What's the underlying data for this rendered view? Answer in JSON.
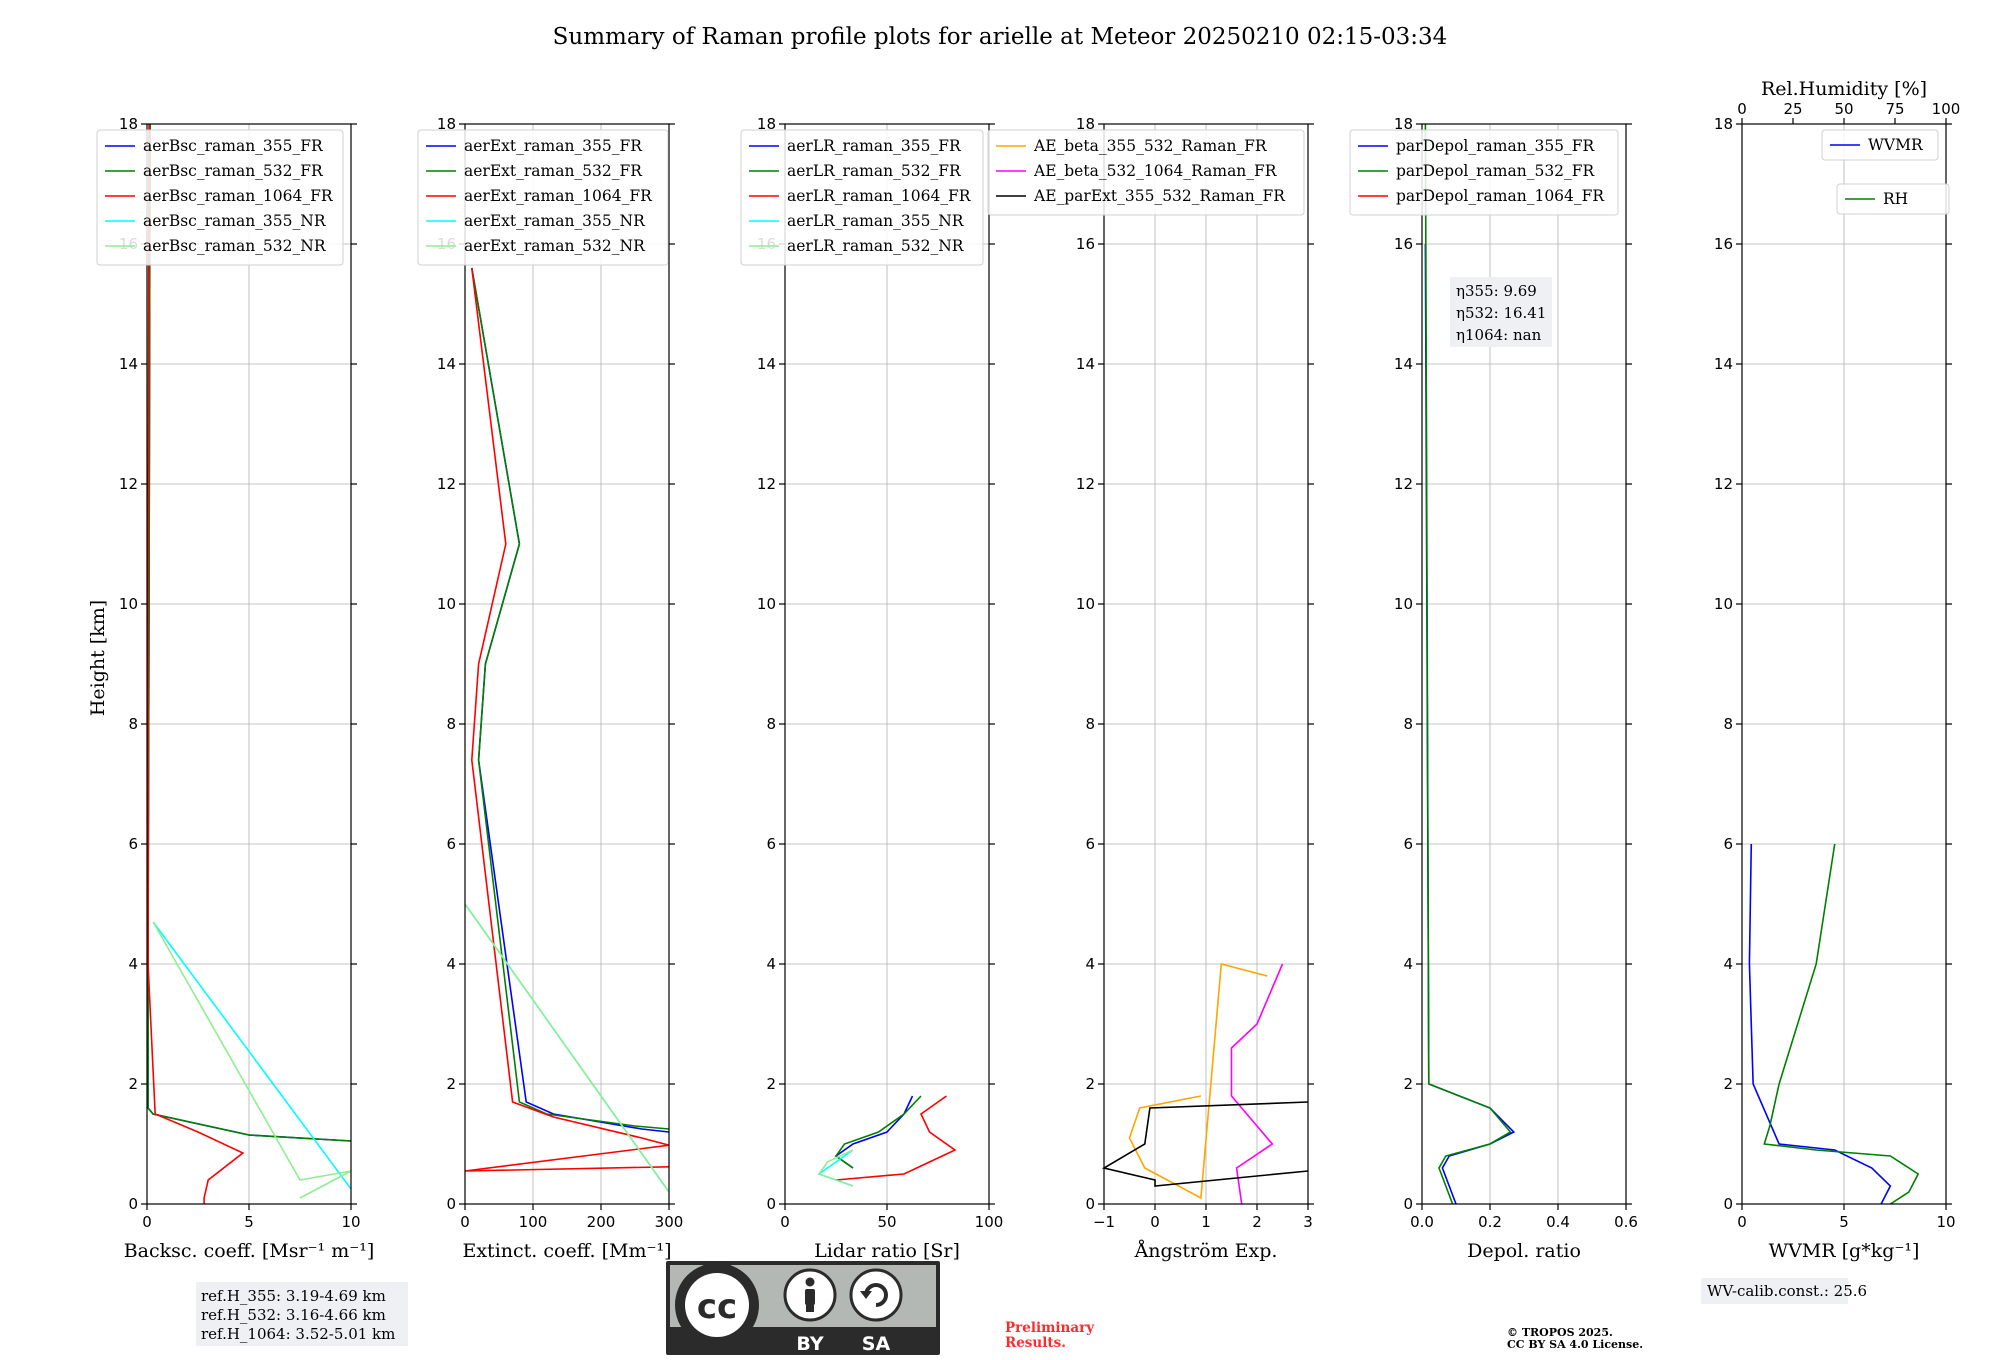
{
  "figure": {
    "title": "Summary of Raman profile plots for arielle at Meteor 20250210 02:15-03:34",
    "ylabel": "Height [km]",
    "preliminary": [
      "Preliminary",
      "Results."
    ],
    "copyright": [
      "© TROPOS 2025.",
      "CC BY SA 4.0 License."
    ],
    "license_badge": {
      "cc": "cc",
      "by": "BY",
      "sa": "SA"
    }
  },
  "notes": {
    "refH": [
      "ref.H_355: 3.19-4.69 km",
      "ref.H_532: 3.16-4.66 km",
      "ref.H_1064: 3.52-5.01 km"
    ],
    "eta": [
      "η355: 9.69",
      "η532: 16.41",
      "η1064: nan"
    ],
    "wv_calib": "WV-calib.const.: 25.6"
  },
  "colors": {
    "355_FR": "#0000ff",
    "532_FR": "#008000",
    "1064_FR": "#ff0000",
    "355_NR": "#00ffff",
    "532_NR": "#90ee90",
    "AE_beta_355_532": "#ffa500",
    "AE_beta_532_1064": "#ff00ff",
    "AE_parExt": "#000000"
  },
  "chart_data": [
    {
      "type": "line",
      "xlabel": "Backsc. coeff. [Msr⁻¹ m⁻¹]",
      "xlim": [
        0,
        10
      ],
      "xticks": [
        "0",
        "5",
        "10"
      ],
      "ylim": [
        0,
        18
      ],
      "yticks": [
        "0",
        "2",
        "4",
        "6",
        "8",
        "10",
        "12",
        "14",
        "16",
        "18"
      ],
      "grid": true,
      "legend_position": "top",
      "series": [
        {
          "name": "aerBsc_raman_355_FR",
          "x": [
            0.15,
            0.1,
            0.05,
            0.05,
            0.3,
            5,
            10
          ],
          "y": [
            18,
            10,
            4,
            1.6,
            1.5,
            1.15,
            1.05
          ]
        },
        {
          "name": "aerBsc_raman_532_FR",
          "x": [
            0.15,
            0.1,
            0.05,
            0.05,
            0.3,
            5,
            10
          ],
          "y": [
            18,
            10,
            4,
            1.6,
            1.5,
            1.15,
            1.05
          ]
        },
        {
          "name": "aerBsc_raman_1064_FR",
          "x": [
            0.1,
            0.05,
            0.05,
            0.4,
            2.5,
            4.7,
            3,
            2.8,
            2.8
          ],
          "y": [
            18,
            10,
            4,
            1.5,
            1.2,
            0.85,
            0.4,
            0.1,
            0
          ]
        },
        {
          "name": "aerBsc_raman_355_NR",
          "x": [
            0.3,
            10
          ],
          "y": [
            4.7,
            0.25
          ]
        },
        {
          "name": "aerBsc_raman_532_NR",
          "x": [
            0.3,
            7.5,
            10,
            7.5
          ],
          "y": [
            4.7,
            0.4,
            0.55,
            0.1
          ]
        }
      ]
    },
    {
      "type": "line",
      "xlabel": "Extinct. coeff. [Mm⁻¹]",
      "xlim": [
        0,
        300
      ],
      "xticks": [
        "0",
        "100",
        "200",
        "300"
      ],
      "ylim": [
        0,
        18
      ],
      "yticks": [
        "0",
        "2",
        "4",
        "6",
        "8",
        "10",
        "12",
        "14",
        "16",
        "18"
      ],
      "grid": true,
      "legend_position": "top",
      "series": [
        {
          "name": "aerExt_raman_355_FR",
          "x": [
            10,
            80,
            30,
            20,
            90,
            130,
            260,
            300
          ],
          "y": [
            15.6,
            11,
            9,
            7.4,
            1.7,
            1.5,
            1.25,
            1.2
          ]
        },
        {
          "name": "aerExt_raman_532_FR",
          "x": [
            10,
            80,
            30,
            20,
            80,
            120,
            250,
            300
          ],
          "y": [
            15.6,
            11,
            9,
            7.4,
            1.7,
            1.5,
            1.3,
            1.25
          ]
        },
        {
          "name": "aerExt_raman_1064_FR",
          "x": [
            10,
            60,
            20,
            10,
            70,
            130,
            260,
            300,
            0,
            300
          ],
          "y": [
            15.6,
            11,
            9,
            7.4,
            1.7,
            1.45,
            1.1,
            0.98,
            0.55,
            0.62
          ]
        },
        {
          "name": "aerExt_raman_355_NR",
          "x": [
            0,
            300
          ],
          "y": [
            5,
            0.2
          ]
        },
        {
          "name": "aerExt_raman_532_NR",
          "x": [
            0,
            300
          ],
          "y": [
            5,
            0.2
          ]
        }
      ]
    },
    {
      "type": "line",
      "xlabel": "Lidar ratio [Sr]",
      "xlim": [
        0,
        120
      ],
      "xticks": [
        "0",
        "50",
        "100"
      ],
      "ylim": [
        0,
        18
      ],
      "yticks": [
        "0",
        "2",
        "4",
        "6",
        "8",
        "10",
        "12",
        "14",
        "16",
        "18"
      ],
      "grid": true,
      "legend_position": "top",
      "series": [
        {
          "name": "aerLR_raman_355_FR",
          "x": [
            75,
            70,
            60,
            40,
            30,
            40
          ],
          "y": [
            1.8,
            1.5,
            1.2,
            1.0,
            0.8,
            0.6
          ]
        },
        {
          "name": "aerLR_raman_532_FR",
          "x": [
            80,
            70,
            55,
            35,
            30,
            40
          ],
          "y": [
            1.8,
            1.5,
            1.2,
            1.0,
            0.8,
            0.6
          ]
        },
        {
          "name": "aerLR_raman_1064_FR",
          "x": [
            95,
            80,
            85,
            100,
            85,
            70,
            30
          ],
          "y": [
            1.8,
            1.5,
            1.2,
            0.9,
            0.7,
            0.5,
            0.4
          ]
        },
        {
          "name": "aerLR_raman_355_NR",
          "x": [
            40,
            30,
            20,
            40
          ],
          "y": [
            0.9,
            0.7,
            0.5,
            0.3
          ]
        },
        {
          "name": "aerLR_raman_532_NR",
          "x": [
            40,
            25,
            20,
            40
          ],
          "y": [
            0.9,
            0.7,
            0.5,
            0.3
          ]
        }
      ]
    },
    {
      "type": "line",
      "xlabel": "Ångström Exp.",
      "xlim": [
        -1,
        3
      ],
      "xticks": [
        "−1",
        "0",
        "1",
        "2",
        "3"
      ],
      "ylim": [
        0,
        18
      ],
      "yticks": [
        "0",
        "2",
        "4",
        "6",
        "8",
        "10",
        "12",
        "14",
        "16",
        "18"
      ],
      "grid": true,
      "legend_position": "top-right",
      "series": [
        {
          "name": "AE_beta_355_532_Raman_FR",
          "x": [
            0.9,
            -0.3,
            -0.5,
            -0.2,
            0.9,
            1.3,
            2.2
          ],
          "y": [
            1.8,
            1.6,
            1.1,
            0.6,
            0.1,
            4.0,
            3.8
          ]
        },
        {
          "name": "AE_beta_532_1064_Raman_FR",
          "x": [
            2.5,
            2.3,
            2.0,
            1.5,
            1.5,
            2.3,
            1.6,
            1.7
          ],
          "y": [
            4.0,
            3.6,
            3.0,
            2.6,
            1.8,
            1.0,
            0.6,
            0
          ]
        },
        {
          "name": "AE_parExt_355_532_Raman_FR",
          "x": [
            3,
            -0.1,
            -0.2,
            -1,
            0,
            0,
            3
          ],
          "y": [
            1.7,
            1.6,
            1.0,
            0.6,
            0.4,
            0.3,
            0.55
          ]
        }
      ]
    },
    {
      "type": "line",
      "xlabel": "Depol. ratio",
      "xlim": [
        0,
        0.6
      ],
      "xticks": [
        "0.0",
        "0.2",
        "0.4",
        "0.6"
      ],
      "ylim": [
        0,
        18
      ],
      "yticks": [
        "0",
        "2",
        "4",
        "6",
        "8",
        "10",
        "12",
        "14",
        "16",
        "18"
      ],
      "grid": true,
      "legend_position": "top",
      "series": [
        {
          "name": "parDepol_raman_355_FR",
          "x": [
            0.01,
            0.02,
            0.2,
            0.27,
            0.2,
            0.08,
            0.06,
            0.08,
            0.1
          ],
          "y": [
            16,
            2,
            1.6,
            1.2,
            1.0,
            0.8,
            0.6,
            0.3,
            0
          ]
        },
        {
          "name": "parDepol_raman_532_FR",
          "x": [
            0.01,
            0.02,
            0.2,
            0.26,
            0.2,
            0.07,
            0.05,
            0.07,
            0.09
          ],
          "y": [
            18,
            2,
            1.6,
            1.2,
            1.0,
            0.8,
            0.6,
            0.3,
            0
          ]
        },
        {
          "name": "parDepol_raman_1064_FR",
          "x": [],
          "y": []
        }
      ]
    },
    {
      "type": "line",
      "xlabel": "WVMR [g*kg⁻¹]",
      "x2label": "Rel.Humidity [%]",
      "xlim": [
        0,
        11
      ],
      "xticks": [
        "0",
        "5",
        "10"
      ],
      "x2lim": [
        0,
        100
      ],
      "x2ticks": [
        "0",
        "25",
        "50",
        "75",
        "100"
      ],
      "ylim": [
        0,
        18
      ],
      "yticks": [
        "0",
        "2",
        "4",
        "6",
        "8",
        "10",
        "12",
        "14",
        "16",
        "18"
      ],
      "grid": true,
      "legend_position": "top-right",
      "series": [
        {
          "name": "WVMR",
          "x": [
            0.5,
            0.4,
            0.6,
            2,
            5,
            7,
            8,
            7.5
          ],
          "y": [
            6,
            4,
            2,
            1.0,
            0.9,
            0.6,
            0.3,
            0
          ]
        },
        {
          "name": "RH",
          "x": [
            5,
            4,
            2,
            1.5,
            1.2,
            4,
            8,
            9.5,
            9,
            8
          ],
          "y": [
            6,
            4,
            2,
            1.3,
            1.0,
            0.9,
            0.8,
            0.5,
            0.2,
            0
          ]
        }
      ]
    }
  ]
}
